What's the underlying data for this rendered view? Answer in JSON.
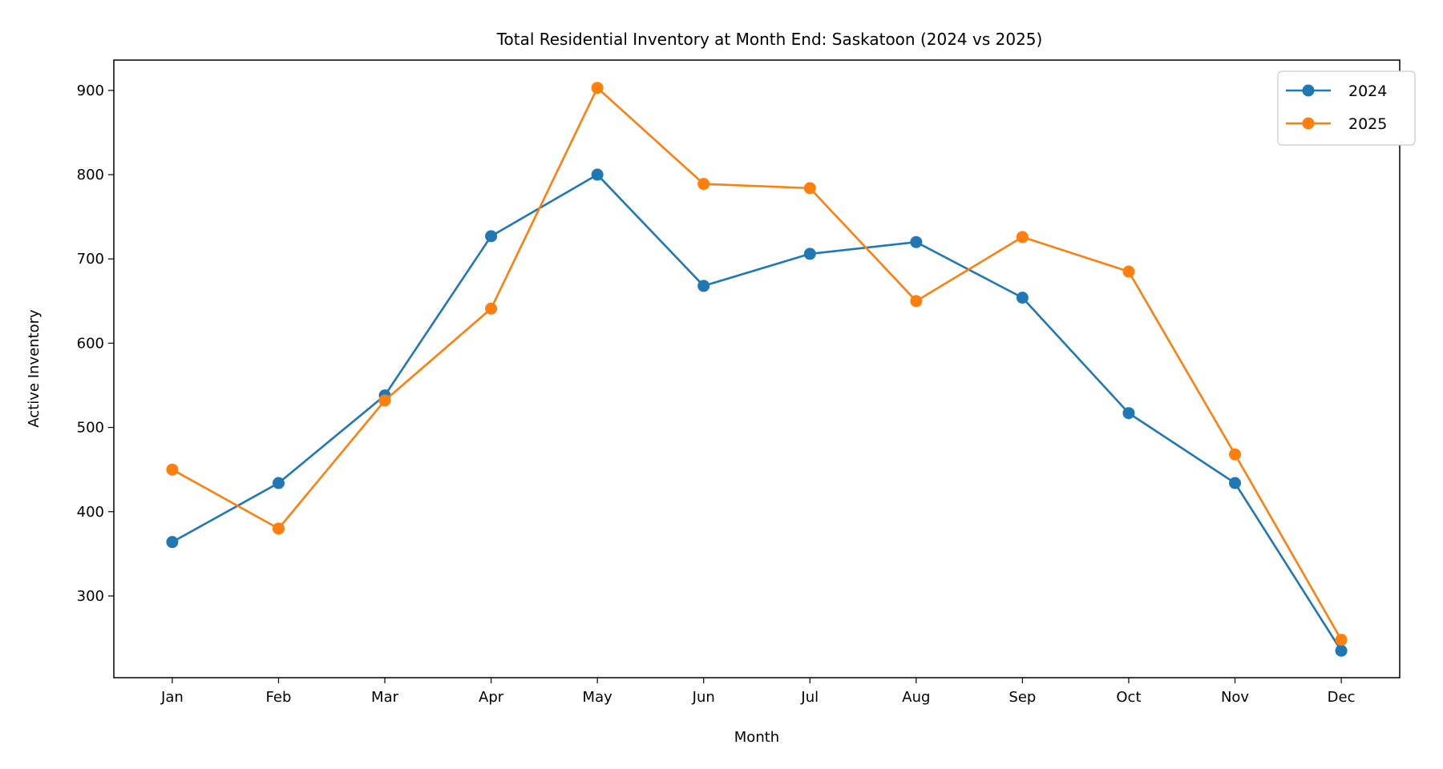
{
  "chart_data": {
    "type": "line",
    "title": "Total Residential Inventory at Month End: Saskatoon (2024 vs 2025)",
    "xlabel": "Month",
    "ylabel": "Active Inventory",
    "categories": [
      "Jan",
      "Feb",
      "Mar",
      "Apr",
      "May",
      "Jun",
      "Jul",
      "Aug",
      "Sep",
      "Oct",
      "Nov",
      "Dec"
    ],
    "yticks": [
      300,
      400,
      500,
      600,
      700,
      800,
      900
    ],
    "ylim": [
      203,
      936
    ],
    "grid": false,
    "legend_position": "top-right",
    "series": [
      {
        "name": "2024",
        "color": "#1f77b4",
        "values": [
          364,
          434,
          538,
          727,
          800,
          668,
          706,
          720,
          654,
          517,
          434,
          235
        ]
      },
      {
        "name": "2025",
        "color": "#ff7f0e",
        "values": [
          450,
          380,
          532,
          641,
          903,
          789,
          784,
          650,
          726,
          685,
          468,
          248
        ]
      }
    ]
  }
}
